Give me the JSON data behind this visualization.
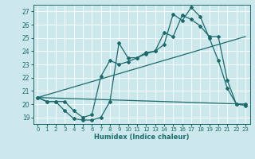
{
  "xlabel": "Humidex (Indice chaleur)",
  "bg_color": "#cce8ec",
  "grid_color": "#b0d4d8",
  "line_color": "#1a6b6b",
  "xlim": [
    -0.5,
    23.5
  ],
  "ylim": [
    18.5,
    27.5
  ],
  "xticks": [
    0,
    1,
    2,
    3,
    4,
    5,
    6,
    7,
    8,
    9,
    10,
    11,
    12,
    13,
    14,
    15,
    16,
    17,
    18,
    19,
    20,
    21,
    22,
    23
  ],
  "yticks": [
    19,
    20,
    21,
    22,
    23,
    24,
    25,
    26,
    27
  ],
  "line1_x": [
    0,
    1,
    2,
    3,
    4,
    5,
    6,
    7,
    8,
    9,
    10,
    11,
    12,
    13,
    14,
    15,
    16,
    17,
    18,
    19,
    20,
    21,
    22,
    23
  ],
  "line1_y": [
    20.5,
    20.2,
    20.2,
    19.5,
    18.9,
    18.8,
    18.8,
    19.0,
    20.2,
    24.6,
    23.5,
    23.5,
    23.9,
    24.0,
    25.4,
    25.1,
    26.7,
    26.4,
    25.9,
    25.1,
    25.1,
    21.8,
    20.0,
    19.9
  ],
  "line2_x": [
    0,
    1,
    2,
    3,
    4,
    5,
    6,
    7,
    8,
    9,
    10,
    11,
    12,
    13,
    14,
    15,
    16,
    17,
    18,
    19,
    20,
    21,
    22,
    23
  ],
  "line2_y": [
    20.5,
    20.2,
    20.2,
    20.2,
    19.5,
    19.0,
    19.2,
    22.1,
    23.3,
    23.0,
    23.2,
    23.5,
    23.8,
    24.0,
    24.5,
    26.8,
    26.3,
    27.3,
    26.6,
    25.0,
    23.3,
    21.2,
    20.0,
    20.0
  ],
  "line3_x": [
    0,
    23
  ],
  "line3_y": [
    20.5,
    20.0
  ],
  "line4_x": [
    0,
    23
  ],
  "line4_y": [
    20.5,
    25.1
  ]
}
